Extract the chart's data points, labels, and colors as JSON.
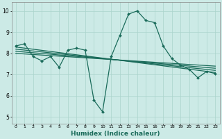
{
  "xlabel": "Humidex (Indice chaleur)",
  "xlim": [
    -0.5,
    23.5
  ],
  "ylim": [
    4.7,
    10.4
  ],
  "xticks": [
    0,
    1,
    2,
    3,
    4,
    5,
    6,
    7,
    8,
    9,
    10,
    11,
    12,
    13,
    14,
    15,
    16,
    17,
    18,
    19,
    20,
    21,
    22,
    23
  ],
  "yticks": [
    5,
    6,
    7,
    8,
    9,
    10
  ],
  "bg_color": "#cceae6",
  "grid_color": "#aad4cc",
  "line_color": "#1a6b5a",
  "main_series": {
    "x": [
      0,
      1,
      2,
      3,
      4,
      5,
      6,
      7,
      8,
      9,
      10,
      11,
      12,
      13,
      14,
      15,
      16,
      17,
      18,
      19,
      20,
      21,
      22,
      23
    ],
    "y": [
      8.35,
      8.45,
      7.85,
      7.65,
      7.85,
      7.35,
      8.15,
      8.25,
      8.15,
      5.8,
      5.25,
      7.85,
      8.85,
      9.85,
      10.0,
      9.55,
      9.45,
      8.35,
      7.75,
      7.45,
      7.25,
      6.85,
      7.15,
      7.05
    ]
  },
  "trend_lines": [
    {
      "x0": 0,
      "y0": 8.3,
      "x1": 23,
      "y1": 7.1
    },
    {
      "x0": 0,
      "y0": 8.2,
      "x1": 23,
      "y1": 7.2
    },
    {
      "x0": 0,
      "y0": 8.1,
      "x1": 23,
      "y1": 7.3
    },
    {
      "x0": 0,
      "y0": 8.0,
      "x1": 23,
      "y1": 7.4
    }
  ]
}
